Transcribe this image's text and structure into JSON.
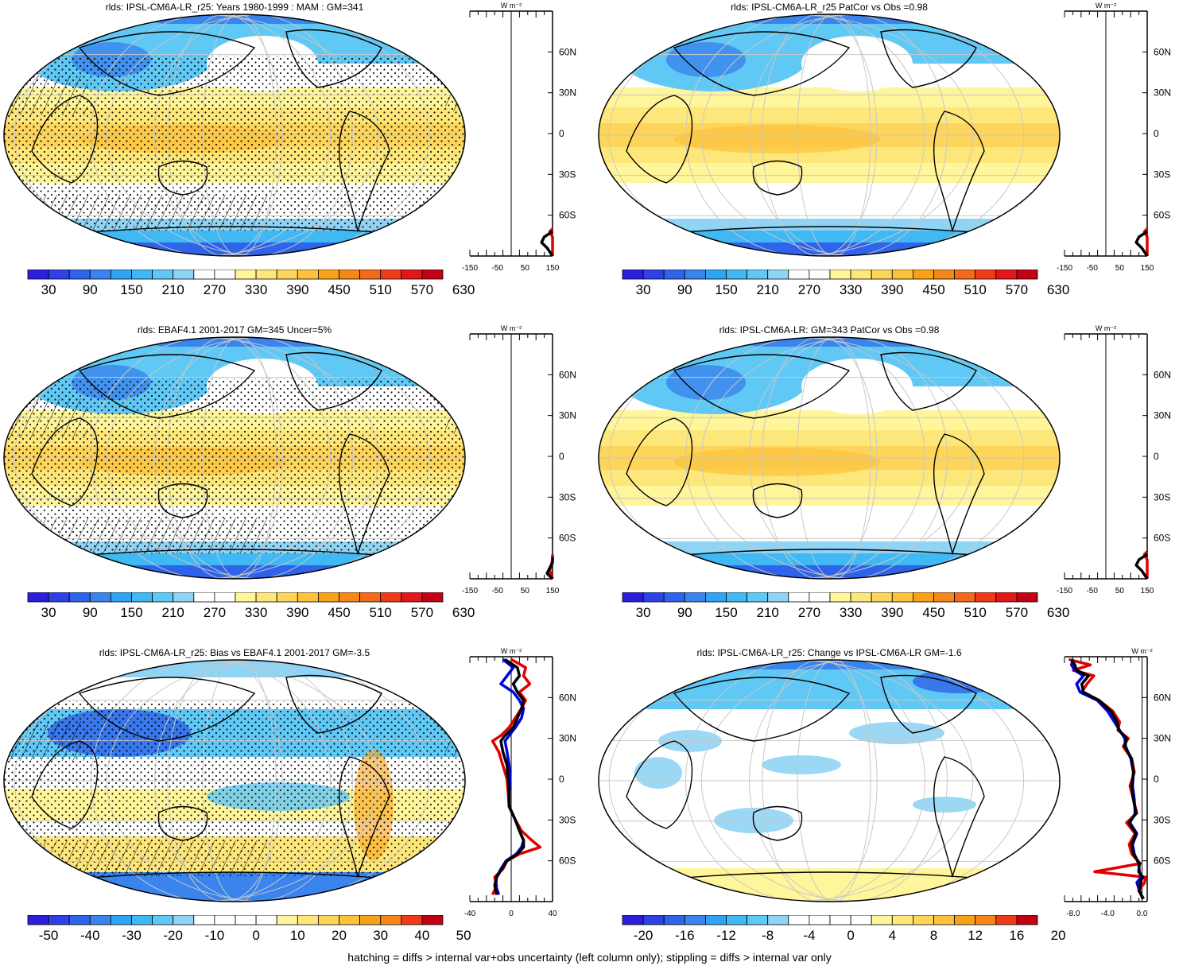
{
  "footer": "hatching = diffs > internal var+obs uncertainty (left column only); stippling = diffs > internal var only",
  "unit_label": "W m⁻²",
  "lat_labels": [
    "60N",
    "30N",
    "0",
    "30S",
    "60S"
  ],
  "colors": {
    "abs_scale": [
      "#2b1fdc",
      "#2f41e6",
      "#2f63ea",
      "#3a84ee",
      "#2ea4f2",
      "#3fb8f4",
      "#60c8f5",
      "#8fd4f4",
      "#ffffff",
      "#ffffff",
      "#fff59a",
      "#fee77a",
      "#fdd55a",
      "#fcc23c",
      "#f8a21c",
      "#f5861a",
      "#f26a1a",
      "#ef3b1a",
      "#e0181a",
      "#c40016"
    ]
  },
  "panels": [
    {
      "id": "model-mam",
      "title": "rlds: IPSL-CM6A-LR_r25: Years 1980-1999 : MAM : GM=341",
      "colorbar_labels": [
        "30",
        "90",
        "150",
        "210",
        "270",
        "330",
        "390",
        "450",
        "510",
        "570",
        "630"
      ],
      "profile_ticks": [
        "-150",
        "-50",
        "50",
        "150"
      ],
      "hatching": true,
      "stippling": true
    },
    {
      "id": "model-patcor",
      "title": "rlds: IPSL-CM6A-LR_r25 PatCor vs Obs =0.98",
      "colorbar_labels": [
        "30",
        "90",
        "150",
        "210",
        "270",
        "330",
        "390",
        "450",
        "510",
        "570",
        "630"
      ],
      "profile_ticks": [
        "-150",
        "-50",
        "50",
        "150"
      ],
      "hatching": false,
      "stippling": false
    },
    {
      "id": "obs",
      "title": "rlds: EBAF4.1 2001-2017 GM=345 Uncer=5%",
      "colorbar_labels": [
        "30",
        "90",
        "150",
        "210",
        "270",
        "330",
        "390",
        "450",
        "510",
        "570",
        "630"
      ],
      "profile_ticks": [
        "-150",
        "-50",
        "50",
        "150"
      ],
      "hatching": true,
      "stippling": true
    },
    {
      "id": "ensemble",
      "title": "rlds: IPSL-CM6A-LR: GM=343 PatCor vs Obs =0.98",
      "colorbar_labels": [
        "30",
        "90",
        "150",
        "210",
        "270",
        "330",
        "390",
        "450",
        "510",
        "570",
        "630"
      ],
      "profile_ticks": [
        "-150",
        "-50",
        "50",
        "150"
      ],
      "hatching": false,
      "stippling": false
    },
    {
      "id": "bias",
      "title": "rlds: IPSL-CM6A-LR_r25: Bias vs EBAF4.1 2001-2017 GM=-3.5",
      "colorbar_labels": [
        "-50",
        "-40",
        "-30",
        "-20",
        "-10",
        "0",
        "10",
        "20",
        "30",
        "40",
        "50"
      ],
      "profile_ticks": [
        "-40",
        "0",
        "40"
      ],
      "hatching": true,
      "stippling": true
    },
    {
      "id": "change",
      "title": "rlds: IPSL-CM6A-LR_r25: Change vs IPSL-CM6A-LR GM=-1.6",
      "colorbar_labels": [
        "-20",
        "-16",
        "-12",
        "-8",
        "-4",
        "0",
        "4",
        "8",
        "12",
        "16",
        "20"
      ],
      "profile_ticks": [
        "-8.0",
        "-4.0",
        "0.0"
      ],
      "hatching": false,
      "stippling": false
    }
  ],
  "chart_data": [
    {
      "type": "line",
      "panel": "model-mam",
      "xlim": [
        -150,
        150
      ],
      "ylim": [
        -90,
        90
      ],
      "series": [
        {
          "color": "#e00000",
          "lat": [
            -90,
            -82,
            -76,
            -72,
            -70
          ],
          "value": [
            150,
            160,
            150,
            140,
            155
          ]
        },
        {
          "color": "#000000",
          "lat": [
            -90,
            -84,
            -80,
            -76,
            -72
          ],
          "value": [
            150,
            130,
            110,
            120,
            150
          ]
        }
      ]
    },
    {
      "type": "line",
      "panel": "model-patcor",
      "xlim": [
        -150,
        150
      ],
      "ylim": [
        -90,
        90
      ],
      "series": [
        {
          "color": "#e00000",
          "lat": [
            -90,
            -82,
            -76,
            -72,
            -70
          ],
          "value": [
            150,
            160,
            150,
            140,
            155
          ]
        },
        {
          "color": "#000000",
          "lat": [
            -90,
            -84,
            -80,
            -76,
            -72
          ],
          "value": [
            150,
            130,
            110,
            120,
            150
          ]
        }
      ]
    },
    {
      "type": "line",
      "panel": "obs",
      "xlim": [
        -150,
        150
      ],
      "ylim": [
        -90,
        90
      ],
      "series": [
        {
          "color": "#e00000",
          "lat": [
            -90,
            -84,
            -80,
            -76,
            -72
          ],
          "value": [
            150,
            140,
            145,
            150,
            155
          ]
        },
        {
          "color": "#000000",
          "lat": [
            -90,
            -86,
            -82,
            -78,
            -74
          ],
          "value": [
            150,
            130,
            140,
            150,
            155
          ]
        }
      ]
    },
    {
      "type": "line",
      "panel": "ensemble",
      "xlim": [
        -150,
        150
      ],
      "ylim": [
        -90,
        90
      ],
      "series": [
        {
          "color": "#e00000",
          "lat": [
            -90,
            -82,
            -76,
            -72,
            -70
          ],
          "value": [
            150,
            160,
            150,
            140,
            155
          ]
        },
        {
          "color": "#000000",
          "lat": [
            -90,
            -84,
            -80,
            -76,
            -72
          ],
          "value": [
            150,
            130,
            110,
            120,
            150
          ]
        }
      ]
    },
    {
      "type": "line",
      "panel": "bias",
      "xlim": [
        -40,
        40
      ],
      "ylim": [
        -90,
        90
      ],
      "series": [
        {
          "color": "#e00000",
          "lat": [
            -85,
            -78,
            -72,
            -66,
            -60,
            -55,
            -50,
            -45,
            -38,
            -30,
            -20,
            -10,
            0,
            10,
            20,
            28,
            32,
            38,
            45,
            52,
            58,
            64,
            70,
            76,
            82,
            88
          ],
          "value": [
            -18,
            -14,
            -16,
            -8,
            -4,
            8,
            28,
            20,
            10,
            4,
            -2,
            -3,
            -4,
            -8,
            -12,
            -18,
            -10,
            -2,
            4,
            10,
            14,
            8,
            18,
            12,
            14,
            0
          ]
        },
        {
          "color": "#0000e0",
          "lat": [
            -85,
            -78,
            -72,
            -66,
            -60,
            -55,
            -50,
            -45,
            -38,
            -30,
            -20,
            -10,
            0,
            10,
            20,
            28,
            32,
            38,
            45,
            52,
            58,
            64,
            70,
            76,
            82,
            88
          ],
          "value": [
            -12,
            -15,
            -14,
            -10,
            -5,
            5,
            10,
            12,
            8,
            4,
            -2,
            -2,
            -1,
            -2,
            -4,
            -6,
            -2,
            4,
            10,
            12,
            8,
            2,
            -10,
            -4,
            2,
            -8
          ]
        },
        {
          "color": "#000000",
          "lat": [
            -85,
            -78,
            -72,
            -66,
            -60,
            -55,
            -50,
            -45,
            -38,
            -30,
            -20,
            -10,
            0,
            10,
            20,
            28,
            32,
            38,
            45,
            52,
            58,
            64,
            70,
            76,
            82,
            88
          ],
          "value": [
            -14,
            -16,
            -14,
            -9,
            -4,
            6,
            12,
            12,
            8,
            4,
            -2,
            -2,
            -3,
            -4,
            -8,
            -10,
            -6,
            2,
            6,
            10,
            12,
            6,
            2,
            8,
            6,
            -6
          ]
        }
      ]
    },
    {
      "type": "line",
      "panel": "change",
      "xlim": [
        -9,
        0.6
      ],
      "ylim": [
        -90,
        90
      ],
      "series": [
        {
          "color": "#e00000",
          "lat": [
            -88,
            -82,
            -76,
            -72,
            -68,
            -62,
            -55,
            -48,
            -40,
            -32,
            -25,
            -15,
            -5,
            5,
            15,
            24,
            30,
            36,
            42,
            50,
            58,
            64,
            70,
            76,
            80,
            84,
            88
          ],
          "value": [
            0.2,
            -0.4,
            0.3,
            0.4,
            -5.5,
            -0.2,
            -1.2,
            -1.5,
            -0.8,
            -1.8,
            -0.6,
            -1.0,
            -1.4,
            -0.9,
            -1.2,
            -2.2,
            -1.6,
            -2.8,
            -2.6,
            -3.4,
            -5.0,
            -7.0,
            -6.4,
            -5.6,
            -8.0,
            -6.0,
            -8.5
          ]
        },
        {
          "color": "#0000e0",
          "lat": [
            -88,
            -82,
            -76,
            -72,
            -68,
            -62,
            -55,
            -48,
            -40,
            -32,
            -25,
            -15,
            -5,
            5,
            15,
            24,
            30,
            36,
            42,
            50,
            58,
            64,
            70,
            76,
            80,
            84,
            88
          ],
          "value": [
            0.1,
            -0.3,
            -0.6,
            -0.1,
            -0.3,
            -0.4,
            -0.9,
            -1.1,
            -0.6,
            -1.4,
            -0.8,
            -0.9,
            -1.1,
            -1.0,
            -1.3,
            -1.9,
            -2.0,
            -2.6,
            -3.2,
            -4.0,
            -5.2,
            -7.2,
            -7.6,
            -6.8,
            -7.8,
            -8.2,
            -8.0
          ]
        },
        {
          "color": "#000000",
          "lat": [
            -88,
            -82,
            -76,
            -72,
            -68,
            -62,
            -55,
            -48,
            -40,
            -32,
            -25,
            -15,
            -5,
            5,
            15,
            24,
            30,
            36,
            42,
            50,
            58,
            64,
            70,
            76,
            80,
            84,
            88
          ],
          "value": [
            0.1,
            -0.3,
            -0.2,
            0.1,
            -0.4,
            -0.3,
            -1.0,
            -1.2,
            -0.7,
            -1.5,
            -0.7,
            -1.0,
            -1.2,
            -1.0,
            -1.2,
            -2.0,
            -1.8,
            -2.7,
            -2.9,
            -3.6,
            -5.0,
            -6.8,
            -7.0,
            -6.2,
            -7.6,
            -7.8,
            -8.2
          ]
        }
      ]
    }
  ]
}
